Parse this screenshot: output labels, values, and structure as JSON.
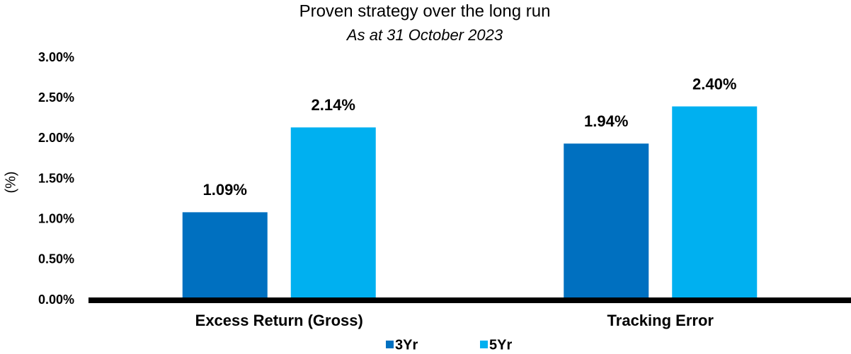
{
  "chart_data": {
    "type": "bar",
    "title": "Proven strategy over the long run",
    "subtitle": "As at 31 October 2023",
    "y_label": "(%)",
    "categories": [
      "Excess Return (Gross)",
      "Tracking Error"
    ],
    "series": [
      {
        "name": "3Yr",
        "color": "#0070c0",
        "values": [
          1.09,
          1.94
        ],
        "value_labels": [
          "1.09%",
          "1.94%"
        ]
      },
      {
        "name": "5Yr",
        "color": "#00b0f0",
        "values": [
          2.14,
          2.4
        ],
        "value_labels": [
          "2.14%",
          "2.40%"
        ]
      }
    ],
    "ylim": [
      0,
      3
    ],
    "yticks": [
      {
        "value": 0,
        "label": "0.00%"
      },
      {
        "value": 0.5,
        "label": "0.50%"
      },
      {
        "value": 1,
        "label": "1.00%"
      },
      {
        "value": 1.5,
        "label": "1.50%"
      },
      {
        "value": 2,
        "label": "2.00%"
      },
      {
        "value": 2.5,
        "label": "2.50%"
      },
      {
        "value": 3,
        "label": "3.00%"
      }
    ],
    "grid": false,
    "legend": "bottom"
  }
}
